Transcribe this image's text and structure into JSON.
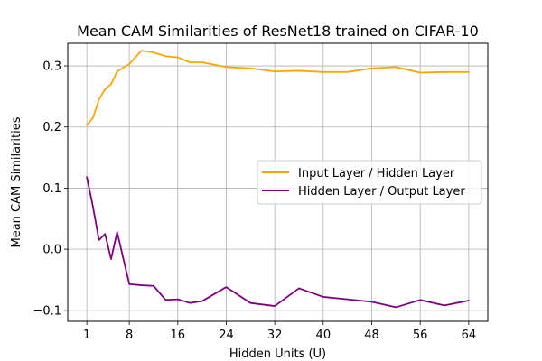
{
  "chart_data": {
    "type": "line",
    "title": "Mean CAM Similarities of ResNet18 trained on CIFAR-10",
    "xlabel": "Hidden Units (U)",
    "ylabel": "Mean CAM Similarities",
    "xlim": [
      -2.15,
      67.15
    ],
    "ylim": [
      -0.118,
      0.337
    ],
    "xticks": [
      1,
      8,
      16,
      24,
      32,
      40,
      48,
      56,
      64
    ],
    "yticks": [
      -0.1,
      0.0,
      0.1,
      0.2,
      0.3
    ],
    "ytick_labels": [
      "−0.1",
      "0.0",
      "0.1",
      "0.2",
      "0.3"
    ],
    "grid": true,
    "legend_position": "center-right",
    "x": [
      1,
      2,
      3,
      4,
      5,
      6,
      8,
      10,
      12,
      14,
      16,
      18,
      20,
      24,
      28,
      32,
      36,
      40,
      44,
      48,
      52,
      56,
      60,
      64
    ],
    "series": [
      {
        "name": "Input Layer / Hidden Layer",
        "color": "#ffa500",
        "values": [
          0.203,
          0.215,
          0.245,
          0.262,
          0.27,
          0.291,
          0.303,
          0.325,
          0.322,
          0.316,
          0.314,
          0.306,
          0.306,
          0.298,
          0.296,
          0.291,
          0.292,
          0.29,
          0.29,
          0.296,
          0.298,
          0.289,
          0.29,
          0.29
        ]
      },
      {
        "name": "Hidden Layer / Output Layer",
        "color": "#800080",
        "values": [
          0.118,
          0.07,
          0.015,
          0.025,
          -0.016,
          0.028,
          -0.057,
          -0.059,
          -0.06,
          -0.083,
          -0.082,
          -0.088,
          -0.085,
          -0.062,
          -0.088,
          -0.093,
          -0.064,
          -0.078,
          -0.082,
          -0.086,
          -0.095,
          -0.083,
          -0.092,
          -0.084
        ]
      }
    ]
  }
}
